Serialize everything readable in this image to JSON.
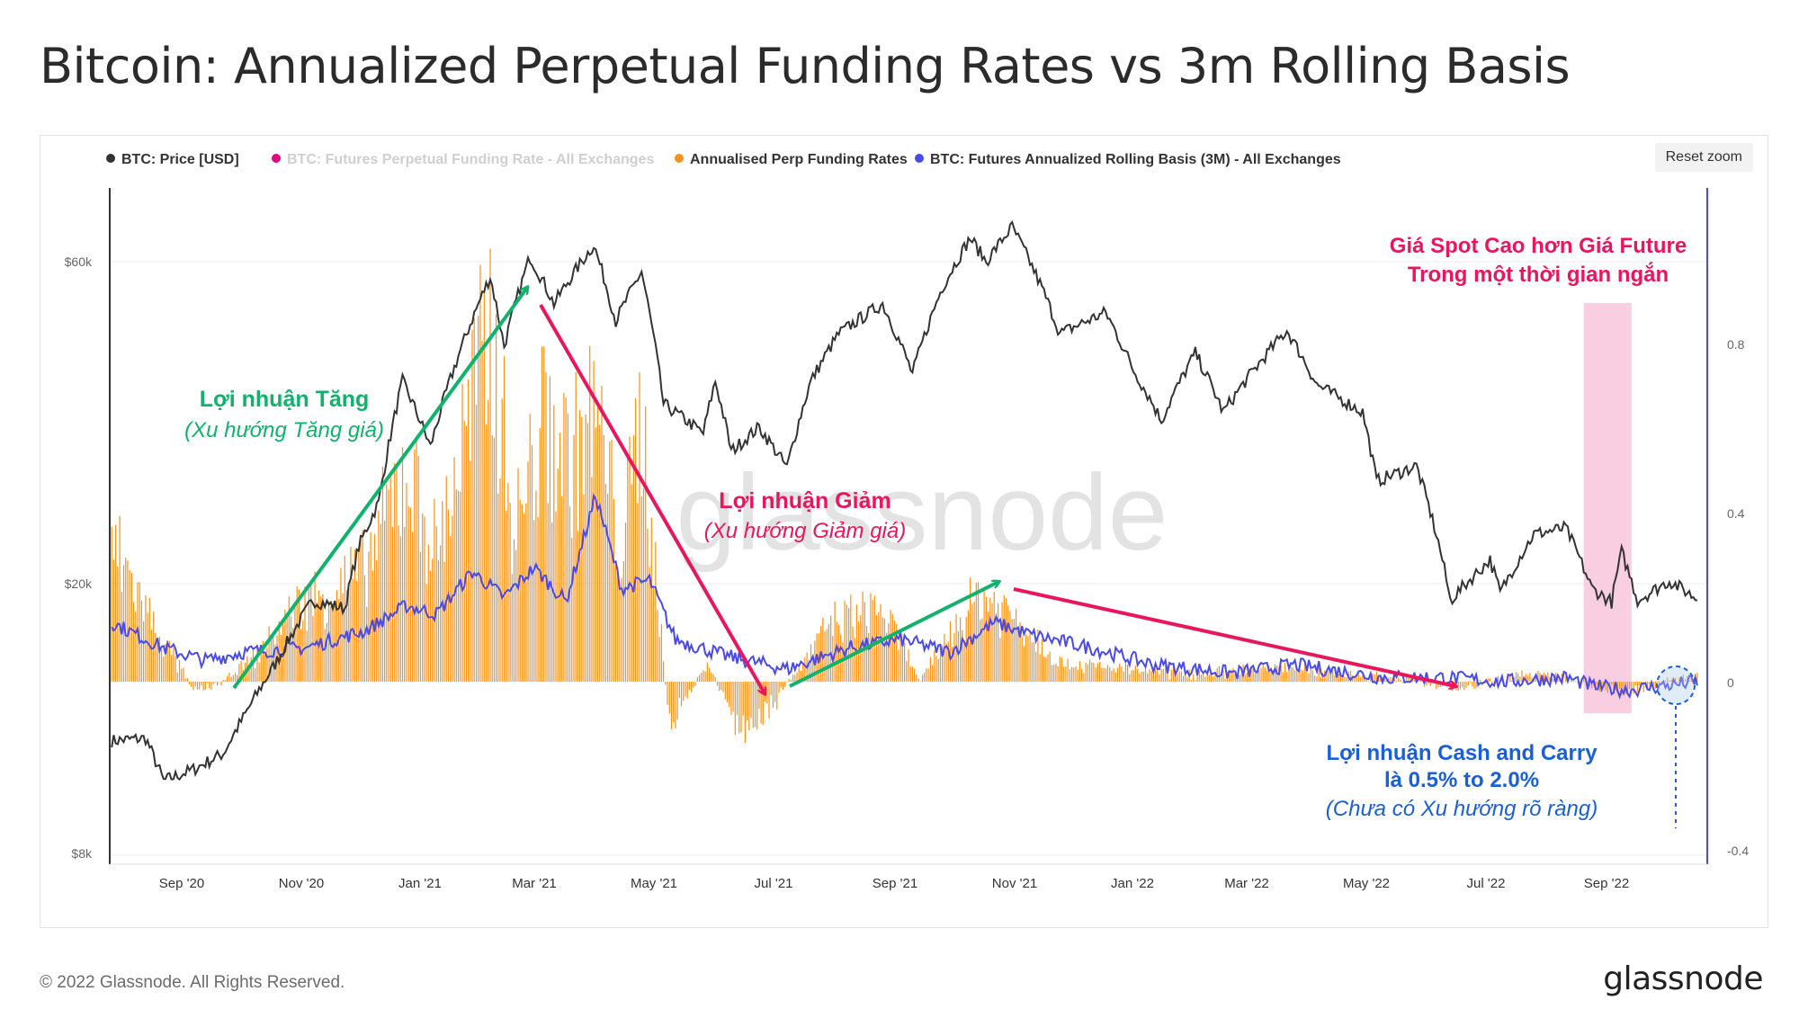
{
  "page": {
    "title": "Bitcoin: Annualized Perpetual Funding Rates vs 3m Rolling Basis",
    "reset_zoom": "Reset zoom",
    "copyright": "© 2022 Glassnode. All Rights Reserved.",
    "logo": "glassnode",
    "watermark": "glassnode"
  },
  "chart_data": {
    "type": "line",
    "legend_placement": "top-left",
    "grid": true,
    "legend": [
      {
        "name": "BTC: Price [USD]",
        "color": "#333333",
        "active": true
      },
      {
        "name": "BTC: Futures Perpetual Funding Rate - All Exchanges",
        "color": "#e6007e",
        "active": false
      },
      {
        "name": "Annualised Perp Funding Rates",
        "color": "#f7931a",
        "active": true
      },
      {
        "name": "BTC: Futures Annualized Rolling Basis (3M) - All Exchanges",
        "color": "#4a4ae8",
        "active": true
      }
    ],
    "x_ticks": [
      "Sep '20",
      "Nov '20",
      "Jan '21",
      "Mar '21",
      "May '21",
      "Jul '21",
      "Sep '21",
      "Nov '21",
      "Jan '22",
      "Mar '22",
      "May '22",
      "Jul '22",
      "Sep '22"
    ],
    "x_range": [
      "2020-08-14",
      "2022-10-25"
    ],
    "y_left": {
      "scale": "log",
      "ticks": [
        "$8k",
        "$20k",
        "$60k"
      ],
      "tick_values": [
        8000,
        20000,
        60000
      ]
    },
    "y_right": {
      "ticks": [
        "-0.4",
        "0",
        "0.4",
        "0.8"
      ],
      "tick_values": [
        -0.4,
        0,
        0.4,
        0.8
      ],
      "range": [
        -0.4,
        1.2
      ]
    },
    "price_series": {
      "name": "BTC: Price [USD]",
      "points": [
        [
          "2020-08-15",
          11800
        ],
        [
          "2020-09-01",
          11900
        ],
        [
          "2020-09-10",
          10300
        ],
        [
          "2020-09-25",
          10700
        ],
        [
          "2020-10-10",
          11300
        ],
        [
          "2020-10-21",
          12900
        ],
        [
          "2020-11-05",
          15300
        ],
        [
          "2020-11-24",
          19000
        ],
        [
          "2020-12-10",
          18500
        ],
        [
          "2020-12-17",
          22800
        ],
        [
          "2020-12-27",
          26500
        ],
        [
          "2021-01-08",
          40000
        ],
        [
          "2021-01-22",
          32000
        ],
        [
          "2021-02-08",
          46000
        ],
        [
          "2021-02-21",
          57000
        ],
        [
          "2021-02-28",
          45000
        ],
        [
          "2021-03-13",
          61000
        ],
        [
          "2021-03-25",
          52000
        ],
        [
          "2021-04-14",
          63500
        ],
        [
          "2021-04-25",
          49000
        ],
        [
          "2021-05-08",
          58000
        ],
        [
          "2021-05-19",
          37000
        ],
        [
          "2021-06-08",
          33500
        ],
        [
          "2021-06-14",
          40000
        ],
        [
          "2021-06-22",
          31500
        ],
        [
          "2021-07-06",
          34200
        ],
        [
          "2021-07-20",
          29800
        ],
        [
          "2021-08-01",
          40000
        ],
        [
          "2021-08-15",
          47000
        ],
        [
          "2021-09-06",
          52000
        ],
        [
          "2021-09-21",
          41000
        ],
        [
          "2021-10-06",
          55000
        ],
        [
          "2021-10-20",
          65000
        ],
        [
          "2021-10-28",
          60000
        ],
        [
          "2021-11-10",
          67500
        ],
        [
          "2021-11-26",
          54000
        ],
        [
          "2021-12-04",
          47000
        ],
        [
          "2021-12-27",
          50500
        ],
        [
          "2022-01-10",
          41500
        ],
        [
          "2022-01-24",
          35000
        ],
        [
          "2022-02-10",
          44000
        ],
        [
          "2022-02-24",
          36000
        ],
        [
          "2022-03-28",
          47500
        ],
        [
          "2022-04-12",
          39500
        ],
        [
          "2022-05-05",
          36000
        ],
        [
          "2022-05-12",
          28500
        ],
        [
          "2022-06-01",
          30000
        ],
        [
          "2022-06-13",
          22500
        ],
        [
          "2022-06-18",
          19000
        ],
        [
          "2022-07-08",
          21800
        ],
        [
          "2022-07-13",
          19500
        ],
        [
          "2022-07-30",
          23800
        ],
        [
          "2022-08-15",
          24300
        ],
        [
          "2022-08-28",
          19800
        ],
        [
          "2022-09-07",
          18900
        ],
        [
          "2022-09-12",
          22400
        ],
        [
          "2022-09-20",
          19000
        ],
        [
          "2022-10-06",
          20300
        ],
        [
          "2022-10-20",
          19100
        ]
      ]
    },
    "basis_series": {
      "name": "BTC: Futures Annualized Rolling Basis (3M) - All Exchanges",
      "points": [
        [
          "2020-08-15",
          0.14
        ],
        [
          "2020-09-10",
          0.08
        ],
        [
          "2020-10-01",
          0.05
        ],
        [
          "2020-10-20",
          0.07
        ],
        [
          "2020-11-20",
          0.08
        ],
        [
          "2020-12-20",
          0.12
        ],
        [
          "2021-01-10",
          0.18
        ],
        [
          "2021-01-25",
          0.16
        ],
        [
          "2021-02-12",
          0.26
        ],
        [
          "2021-02-28",
          0.2
        ],
        [
          "2021-03-15",
          0.27
        ],
        [
          "2021-03-31",
          0.19
        ],
        [
          "2021-04-15",
          0.44
        ],
        [
          "2021-04-28",
          0.22
        ],
        [
          "2021-05-12",
          0.24
        ],
        [
          "2021-05-25",
          0.1
        ],
        [
          "2021-06-20",
          0.06
        ],
        [
          "2021-07-20",
          0.03
        ],
        [
          "2021-08-20",
          0.08
        ],
        [
          "2021-09-15",
          0.1
        ],
        [
          "2021-10-10",
          0.07
        ],
        [
          "2021-11-01",
          0.14
        ],
        [
          "2021-11-20",
          0.11
        ],
        [
          "2021-12-20",
          0.08
        ],
        [
          "2022-01-20",
          0.04
        ],
        [
          "2022-03-01",
          0.02
        ],
        [
          "2022-04-01",
          0.04
        ],
        [
          "2022-05-15",
          0.01
        ],
        [
          "2022-06-15",
          0.01
        ],
        [
          "2022-07-15",
          0.0
        ],
        [
          "2022-08-15",
          0.01
        ],
        [
          "2022-08-28",
          -0.01
        ],
        [
          "2022-09-15",
          -0.02
        ],
        [
          "2022-10-20",
          0.0
        ]
      ]
    },
    "funding_series": {
      "name": "Annualised Perp Funding Rates",
      "points": [
        [
          "2020-08-15",
          0.38
        ],
        [
          "2020-09-05",
          0.15
        ],
        [
          "2020-09-25",
          -0.02
        ],
        [
          "2020-10-10",
          0.0
        ],
        [
          "2020-10-25",
          0.06
        ],
        [
          "2020-11-15",
          0.2
        ],
        [
          "2020-12-05",
          0.25
        ],
        [
          "2020-12-20",
          0.3
        ],
        [
          "2021-01-10",
          0.58
        ],
        [
          "2021-01-25",
          0.35
        ],
        [
          "2021-02-10",
          0.7
        ],
        [
          "2021-02-22",
          0.95
        ],
        [
          "2021-03-05",
          0.4
        ],
        [
          "2021-03-20",
          0.7
        ],
        [
          "2021-04-02",
          0.6
        ],
        [
          "2021-04-15",
          0.72
        ],
        [
          "2021-04-28",
          0.35
        ],
        [
          "2021-05-08",
          0.72
        ],
        [
          "2021-05-22",
          -0.12
        ],
        [
          "2021-06-10",
          0.05
        ],
        [
          "2021-06-28",
          -0.15
        ],
        [
          "2021-07-15",
          -0.05
        ],
        [
          "2021-08-10",
          0.15
        ],
        [
          "2021-09-05",
          0.2
        ],
        [
          "2021-09-25",
          0.0
        ],
        [
          "2021-10-12",
          0.15
        ],
        [
          "2021-10-25",
          0.24
        ],
        [
          "2021-11-10",
          0.18
        ],
        [
          "2021-12-05",
          0.05
        ],
        [
          "2022-01-15",
          0.03
        ],
        [
          "2022-02-15",
          0.02
        ],
        [
          "2022-03-25",
          0.04
        ],
        [
          "2022-04-25",
          0.02
        ],
        [
          "2022-05-25",
          0.01
        ],
        [
          "2022-06-20",
          -0.02
        ],
        [
          "2022-07-25",
          0.02
        ],
        [
          "2022-08-20",
          0.01
        ],
        [
          "2022-09-10",
          -0.03
        ],
        [
          "2022-10-20",
          0.02
        ]
      ]
    },
    "annotations": {
      "up_title": "Lợi nhuận Tăng",
      "up_sub": "(Xu hướng Tăng giá)",
      "down_title": "Lợi nhuận Giảm",
      "down_sub": "(Xu hướng Giảm giá)",
      "spot_line1": "Giá Spot Cao hơn Giá Future",
      "spot_line2": "Trong một thời gian ngắn",
      "cash_line1": "Lợi nhuận Cash and Carry",
      "cash_line2": "là 0.5% to 2.0%",
      "cash_sub": "(Chưa có Xu hướng rõ ràng)"
    },
    "colors": {
      "price": "#333333",
      "funding": "#f7931a",
      "basis": "#4a4ae8",
      "arrow_up": "#10b26c",
      "arrow_down": "#e8175d",
      "cash": "#1a5fd6",
      "highlight": "#f7c6da"
    }
  }
}
